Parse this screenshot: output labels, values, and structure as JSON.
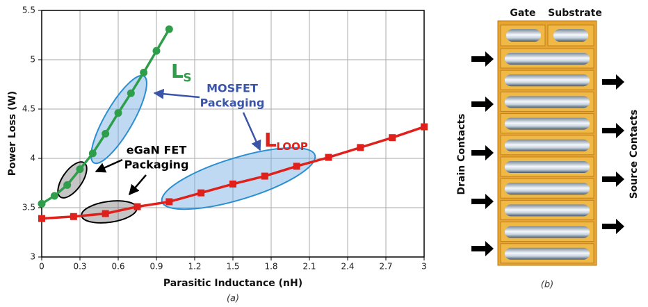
{
  "chart_data": {
    "type": "line",
    "x_label": "Parasitic Inductance (nH)",
    "y_label": "Power Loss (W)",
    "caption": "(a)",
    "xlim": [
      0,
      3
    ],
    "xticks": [
      0,
      0.3,
      0.6,
      0.9,
      1.2,
      1.5,
      1.8,
      2.1,
      2.4,
      2.7,
      3
    ],
    "ylim": [
      3,
      5.5
    ],
    "yticks": [
      3,
      3.5,
      4,
      4.5,
      5,
      5.5
    ],
    "grid": true,
    "series": [
      {
        "color": "#2e9e4a",
        "marker": "circle",
        "x": [
          0,
          0.1,
          0.2,
          0.3,
          0.4,
          0.5,
          0.6,
          0.7,
          0.8,
          0.9,
          1.0
        ],
        "values": [
          3.54,
          3.62,
          3.73,
          3.89,
          4.05,
          4.25,
          4.46,
          4.66,
          4.87,
          5.09,
          5.31
        ]
      },
      {
        "color": "#e0201b",
        "marker": "square",
        "x": [
          0,
          0.25,
          0.5,
          0.75,
          1.0,
          1.25,
          1.5,
          1.75,
          2.0,
          2.25,
          2.5,
          2.75,
          3.0
        ],
        "values": [
          3.39,
          3.41,
          3.44,
          3.51,
          3.56,
          3.65,
          3.74,
          3.82,
          3.92,
          4.01,
          4.11,
          4.21,
          4.32
        ]
      }
    ],
    "annotations": [
      {
        "text": "L",
        "subscript": "S"
      },
      {
        "lines": [
          "MOSFET",
          "Packaging"
        ]
      },
      {
        "text": "L",
        "subscript": "LOOP"
      },
      {
        "lines": [
          "eGaN FET",
          "Packaging"
        ]
      }
    ]
  },
  "diagram": {
    "gate": "Gate",
    "substrate": "Substrate",
    "drain": "Drain Contacts",
    "source": "Source Contacts",
    "caption": "(b)"
  }
}
